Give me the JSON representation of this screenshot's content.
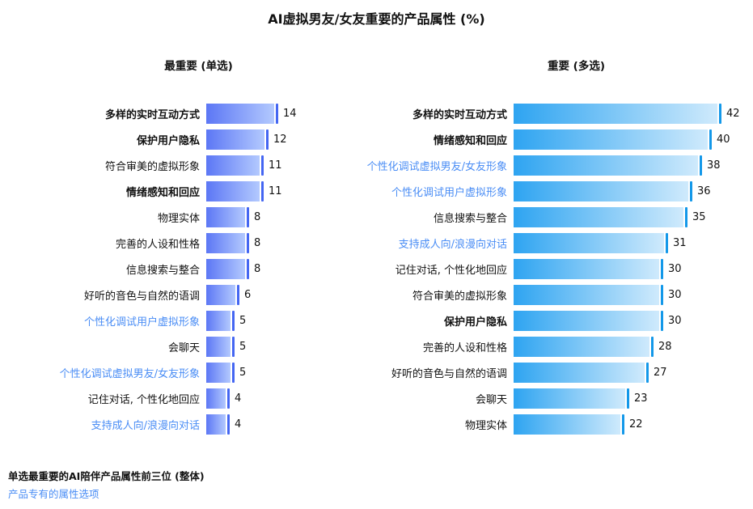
{
  "title": "AI虚拟男友/女友重要的产品属性 (%)",
  "chart_data": [
    {
      "type": "bar",
      "orientation": "horizontal",
      "title": "最重要 (单选)",
      "value_unit": "%",
      "xlim": [
        0,
        15
      ],
      "items": [
        {
          "label": "多样的实时互动方式",
          "value": 14,
          "emphasis": "bold"
        },
        {
          "label": "保护用户隐私",
          "value": 12,
          "emphasis": "bold"
        },
        {
          "label": "符合审美的虚拟形象",
          "value": 11
        },
        {
          "label": "情绪感知和回应",
          "value": 11,
          "emphasis": "bold"
        },
        {
          "label": "物理实体",
          "value": 8
        },
        {
          "label": "完善的人设和性格",
          "value": 8
        },
        {
          "label": "信息搜索与整合",
          "value": 8
        },
        {
          "label": "好听的音色与自然的语调",
          "value": 6
        },
        {
          "label": "个性化调试用户虚拟形象",
          "value": 5,
          "emphasis": "highlight"
        },
        {
          "label": "会聊天",
          "value": 5
        },
        {
          "label": "个性化调试虚拟男友/女友形象",
          "value": 5,
          "emphasis": "highlight"
        },
        {
          "label": "记住对话, 个性化地回应",
          "value": 4
        },
        {
          "label": "支持成人向/浪漫向对话",
          "value": 4,
          "emphasis": "highlight"
        }
      ]
    },
    {
      "type": "bar",
      "orientation": "horizontal",
      "title": "重要 (多选)",
      "value_unit": "%",
      "xlim": [
        0,
        45
      ],
      "items": [
        {
          "label": "多样的实时互动方式",
          "value": 42,
          "emphasis": "bold"
        },
        {
          "label": "情绪感知和回应",
          "value": 40,
          "emphasis": "bold"
        },
        {
          "label": "个性化调试虚拟男友/女友形象",
          "value": 38,
          "emphasis": "highlight"
        },
        {
          "label": "个性化调试用户虚拟形象",
          "value": 36,
          "emphasis": "highlight"
        },
        {
          "label": "信息搜索与整合",
          "value": 35
        },
        {
          "label": "支持成人向/浪漫向对话",
          "value": 31,
          "emphasis": "highlight"
        },
        {
          "label": "记住对话, 个性化地回应",
          "value": 30
        },
        {
          "label": "符合审美的虚拟形象",
          "value": 30
        },
        {
          "label": "保护用户隐私",
          "value": 30,
          "emphasis": "bold"
        },
        {
          "label": "完善的人设和性格",
          "value": 28
        },
        {
          "label": "好听的音色与自然的语调",
          "value": 27
        },
        {
          "label": "会聊天",
          "value": 23
        },
        {
          "label": "物理实体",
          "value": 22
        }
      ]
    }
  ],
  "footnotes": [
    "单选最重要的AI陪伴产品属性前三位 (整体)",
    "产品专有的属性选项"
  ],
  "colors": {
    "left_bar_start": "#5c77f5",
    "left_bar_end": "#b3c9fe",
    "left_tick": "#4466f2",
    "right_bar_start": "#2ea4f1",
    "right_bar_end": "#cfeafc",
    "right_tick": "#1398e9",
    "highlight": "#4a8df5",
    "text": "#111111"
  }
}
